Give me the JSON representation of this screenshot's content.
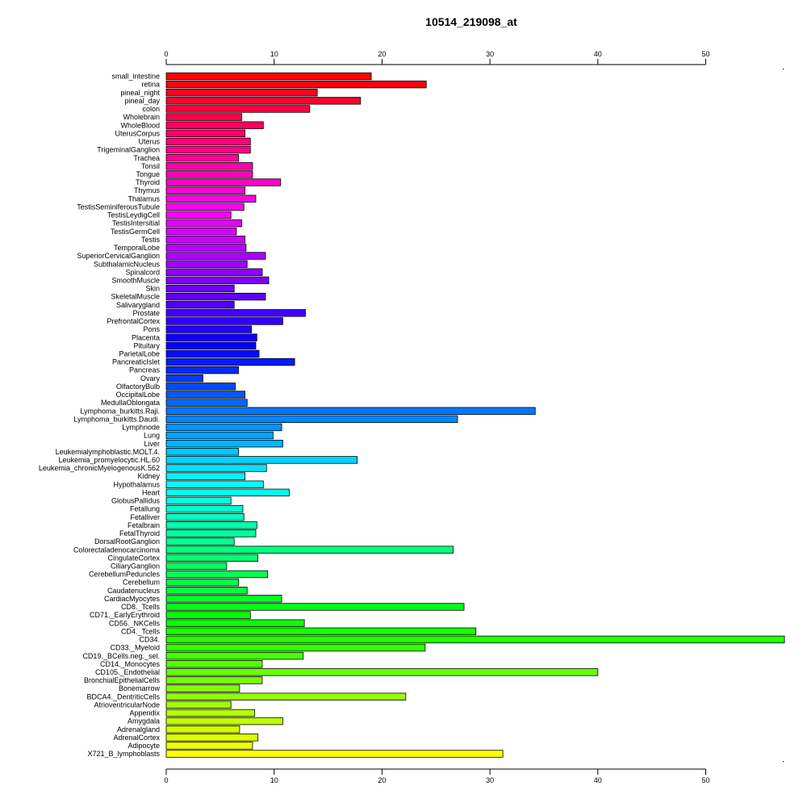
{
  "chart_data": {
    "type": "bar",
    "orientation": "horizontal",
    "title": "10514_219098_at",
    "xlabel": "",
    "ylabel": "",
    "xlim": [
      0,
      57.3
    ],
    "ticks": [
      0,
      10,
      20,
      30,
      40,
      50
    ],
    "tick_labels": [
      "0",
      "10",
      "20",
      "30",
      "40",
      "50"
    ],
    "grid": false,
    "legend": "none",
    "categories": [
      "small_intestine",
      "retina",
      "pineal_night",
      "pineal_day",
      "colon",
      "Wholebrain",
      "WholeBlood",
      "UterusCorpus",
      "Uterus",
      "TrigeminalGanglion",
      "Trachea",
      "Tonsil",
      "Tongue",
      "Thyroid",
      "Thymus",
      "Thalamus",
      "TestisSeminiferousTubule",
      "TestisLeydigCell",
      "TestisIntersitial",
      "TestisGermCell",
      "Testis",
      "TemporalLobe",
      "SuperiorCervicalGanglion",
      "SubthalamicNucleus",
      "Spinalcord",
      "SmoothMuscle",
      "Skin",
      "SkeletalMuscle",
      "Salivarygland",
      "Prostate",
      "PrefrontalCortex",
      "Pons",
      "Placenta",
      "Pituitary",
      "ParietalLobe",
      "PancreaticIslet",
      "Pancreas",
      "Ovary",
      "OlfactoryBulb",
      "OccipitalLobe",
      "MedullaOblongata",
      "Lymphoma_burkitts.Raji.",
      "Lymphoma_burkitts.Daudi.",
      "Lymphnode",
      "Lung",
      "Liver",
      "Leukemialymphoblastic.MOLT.4.",
      "Leukemia_promyelocytic.HL.60",
      "Leukemia_chronicMyelogenousK.562",
      "Kidney",
      "Hypothalamus",
      "Heart",
      "GlobusPallidus",
      "Fetallung",
      "Fetalliver",
      "Fetalbrain",
      "FetalThyroid",
      "DorsalRootGanglion",
      "Colorectaladenocarcinoma",
      "CingulateCortex",
      "CiliaryGanglion",
      "CerebellumPeduncles",
      "Cerebellum",
      "Caudatenucleus",
      "CardiacMyocytes",
      "CD8._Tcells",
      "CD71._EarlyErythroid",
      "CD56._NKCells",
      "CD4._Tcells",
      "CD34.",
      "CD33._Myeloid",
      "CD19._BCells.neg._sel.",
      "CD14._Monocytes",
      "CD105._Endothelial",
      "BronchialEpithelialCells",
      "Bonemarrow",
      "BDCA4._DentriticCells",
      "AtrioventricularNode",
      "Appendix",
      "Amygdala",
      "Adrenalgland",
      "AdrenalCortex",
      "Adipocyte",
      "X721_B_lymphoblasts"
    ],
    "values": [
      19.0,
      24.1,
      14.0,
      18.0,
      13.3,
      7.0,
      9.0,
      7.3,
      7.8,
      7.8,
      6.7,
      8.0,
      8.0,
      10.6,
      7.3,
      8.3,
      7.2,
      6.0,
      7.0,
      6.5,
      7.3,
      7.4,
      9.2,
      7.5,
      8.9,
      9.5,
      6.3,
      9.2,
      6.3,
      12.9,
      10.8,
      7.9,
      8.4,
      8.3,
      8.6,
      11.9,
      6.7,
      3.4,
      6.4,
      7.3,
      7.5,
      34.2,
      27.0,
      10.7,
      9.9,
      10.8,
      6.7,
      17.7,
      9.3,
      7.3,
      9.0,
      11.4,
      6.0,
      7.1,
      7.2,
      8.4,
      8.3,
      6.3,
      26.6,
      8.5,
      5.6,
      9.4,
      6.7,
      7.5,
      10.7,
      27.6,
      7.8,
      12.8,
      28.7,
      57.3,
      24.0,
      12.7,
      8.9,
      40.0,
      8.9,
      6.8,
      22.2,
      6.0,
      8.2,
      10.8,
      6.8,
      8.5,
      8.0,
      31.2
    ]
  }
}
